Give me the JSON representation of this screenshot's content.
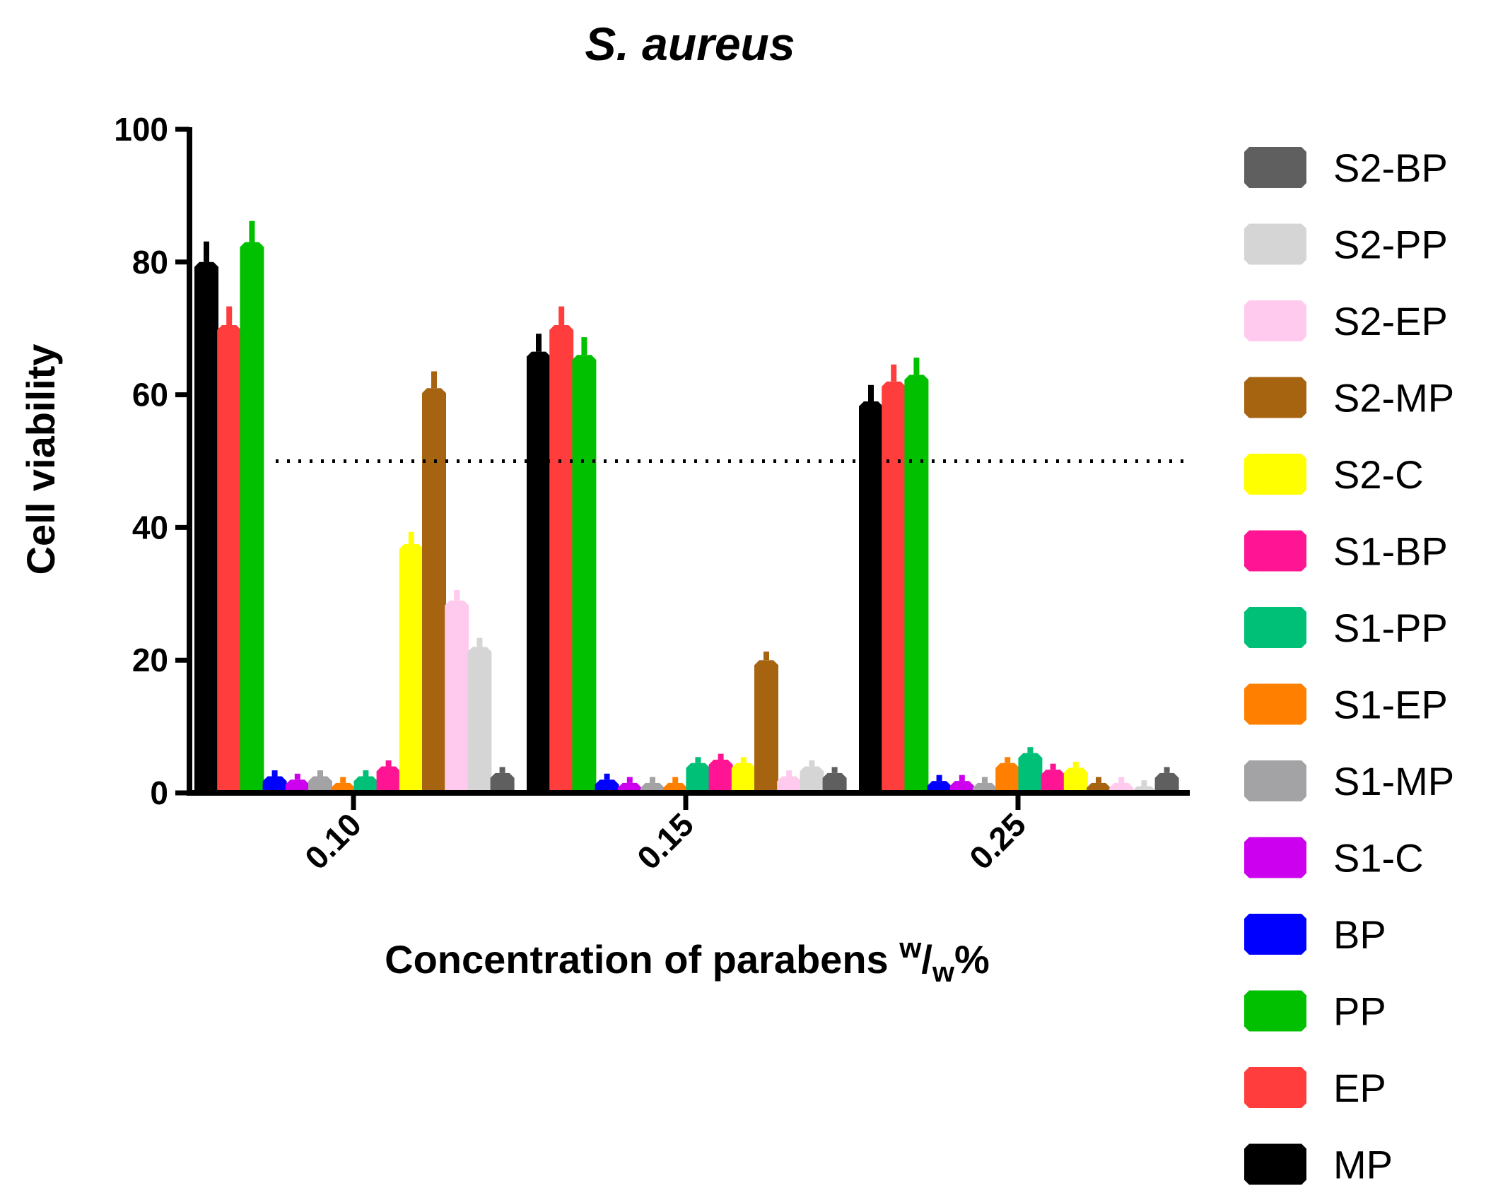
{
  "chart_data": {
    "type": "bar",
    "title": "S. aureus",
    "xlabel": {
      "prefix": "Concentration of parabens ",
      "sup": "w",
      "slash": "/",
      "sub": "w",
      "suffix": "%"
    },
    "ylabel": "Cell viability",
    "ylim": [
      0,
      100
    ],
    "yticks": [
      "0",
      "20",
      "40",
      "60",
      "80",
      "100"
    ],
    "categories": [
      "0.10",
      "0.15",
      "0.25"
    ],
    "threshold": 50,
    "series": [
      {
        "name": "MP",
        "color": "#000000",
        "values": [
          80,
          66.5,
          59
        ]
      },
      {
        "name": "EP",
        "color": "#ff3d3d",
        "values": [
          70.5,
          70.5,
          62
        ]
      },
      {
        "name": "PP",
        "color": "#00c000",
        "values": [
          83,
          66,
          63
        ]
      },
      {
        "name": "BP",
        "color": "#0000ff",
        "values": [
          2.5,
          2,
          1.8
        ]
      },
      {
        "name": "S1-C",
        "color": "#cc00ee",
        "values": [
          2,
          1.5,
          1.8
        ]
      },
      {
        "name": "S1-MP",
        "color": "#a3a3a5",
        "values": [
          2.5,
          1.5,
          1.5
        ]
      },
      {
        "name": "S1-EP",
        "color": "#ff8000",
        "values": [
          1.5,
          1.5,
          4.5
        ]
      },
      {
        "name": "S1-PP",
        "color": "#00c078",
        "values": [
          2.5,
          4.5,
          6
        ]
      },
      {
        "name": "S1-BP",
        "color": "#ff1493",
        "values": [
          4,
          5,
          3.5
        ]
      },
      {
        "name": "S2-C",
        "color": "#ffff00",
        "values": [
          37.5,
          4.5,
          3.8
        ]
      },
      {
        "name": "S2-MP",
        "color": "#a66410",
        "values": [
          61,
          20,
          1.5
        ]
      },
      {
        "name": "S2-EP",
        "color": "#ffcaed",
        "values": [
          29,
          2.5,
          1.5
        ]
      },
      {
        "name": "S2-PP",
        "color": "#d5d5d5",
        "values": [
          22,
          4,
          1
        ]
      },
      {
        "name": "S2-BP",
        "color": "#5f5f5f",
        "values": [
          3,
          3,
          3
        ]
      }
    ],
    "legend": [
      "S2-BP",
      "S2-PP",
      "S2-EP",
      "S2-MP",
      "S2-C",
      "S1-BP",
      "S1-PP",
      "S1-EP",
      "S1-MP",
      "S1-C",
      "BP",
      "PP",
      "EP",
      "MP"
    ],
    "legend_position": "right",
    "grid": false
  }
}
